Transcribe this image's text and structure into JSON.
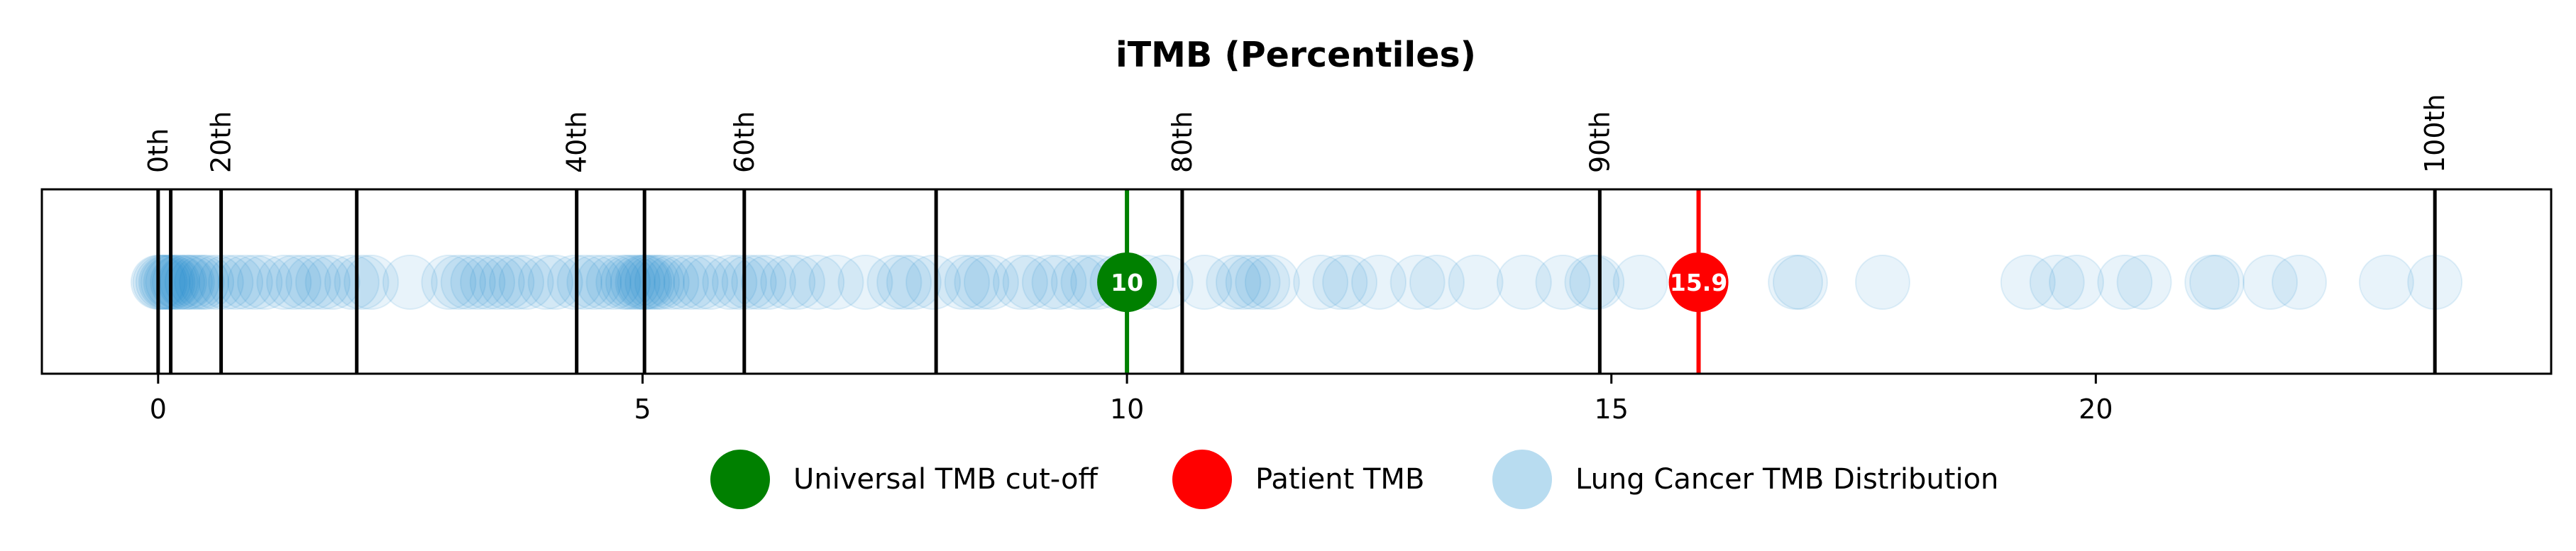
{
  "chart_data": {
    "type": "scatter",
    "title": "iTMB (Percentiles)",
    "xlim": [
      -1.2,
      24.7
    ],
    "x_ticks": [
      0,
      5,
      10,
      15,
      20
    ],
    "x_tick_labels": [
      "0",
      "5",
      "10",
      "15",
      "20"
    ],
    "grid": false,
    "legend_position": "bottom-center",
    "percentile_lines": [
      {
        "x": 0.0,
        "label": "0th"
      },
      {
        "x": 0.13,
        "label": ""
      },
      {
        "x": 0.65,
        "label": "20th"
      },
      {
        "x": 2.05,
        "label": ""
      },
      {
        "x": 4.32,
        "label": "40th"
      },
      {
        "x": 5.02,
        "label": ""
      },
      {
        "x": 6.05,
        "label": "60th"
      },
      {
        "x": 8.03,
        "label": ""
      },
      {
        "x": 10.57,
        "label": "80th"
      },
      {
        "x": 14.88,
        "label": "90th"
      },
      {
        "x": 23.5,
        "label": "100th"
      }
    ],
    "cutoff": {
      "x": 10,
      "label": "10",
      "legend": "Universal TMB cut-off",
      "color": "#008000"
    },
    "patient": {
      "x": 15.9,
      "label": "15.9",
      "legend": "Patient TMB",
      "color": "#ff0000"
    },
    "distribution": {
      "legend": "Lung Cancer TMB Distribution",
      "color": "#1f8ad1",
      "legend_color": "#b8dcf0",
      "values": [
        0.0,
        0.02,
        0.05,
        0.08,
        0.1,
        0.13,
        0.15,
        0.2,
        0.22,
        0.28,
        0.3,
        0.35,
        0.4,
        0.45,
        0.5,
        0.6,
        0.7,
        0.8,
        0.9,
        1.0,
        1.1,
        1.3,
        1.4,
        1.5,
        1.6,
        1.7,
        1.8,
        2.0,
        2.1,
        2.2,
        2.6,
        3.0,
        3.1,
        3.2,
        3.3,
        3.4,
        3.5,
        3.6,
        3.7,
        3.8,
        4.0,
        4.1,
        4.3,
        4.4,
        4.5,
        4.6,
        4.7,
        4.8,
        4.85,
        4.9,
        4.95,
        5.0,
        5.02,
        5.05,
        5.1,
        5.15,
        5.2,
        5.3,
        5.4,
        5.5,
        5.6,
        5.7,
        5.9,
        6.0,
        6.1,
        6.2,
        6.3,
        6.5,
        6.6,
        6.8,
        7.0,
        7.3,
        7.6,
        7.7,
        7.8,
        8.0,
        8.3,
        8.4,
        8.5,
        8.6,
        8.9,
        9.0,
        9.2,
        9.3,
        9.5,
        9.6,
        9.7,
        9.9,
        10.2,
        10.4,
        10.8,
        11.1,
        11.2,
        11.3,
        11.4,
        11.5,
        12.0,
        12.2,
        12.3,
        12.6,
        13.0,
        13.2,
        13.6,
        14.1,
        14.5,
        14.8,
        14.85,
        15.3,
        16.9,
        16.95,
        17.8,
        19.3,
        19.6,
        19.8,
        20.3,
        20.5,
        21.2,
        21.25,
        21.8,
        22.1,
        23.0,
        23.5
      ]
    }
  }
}
